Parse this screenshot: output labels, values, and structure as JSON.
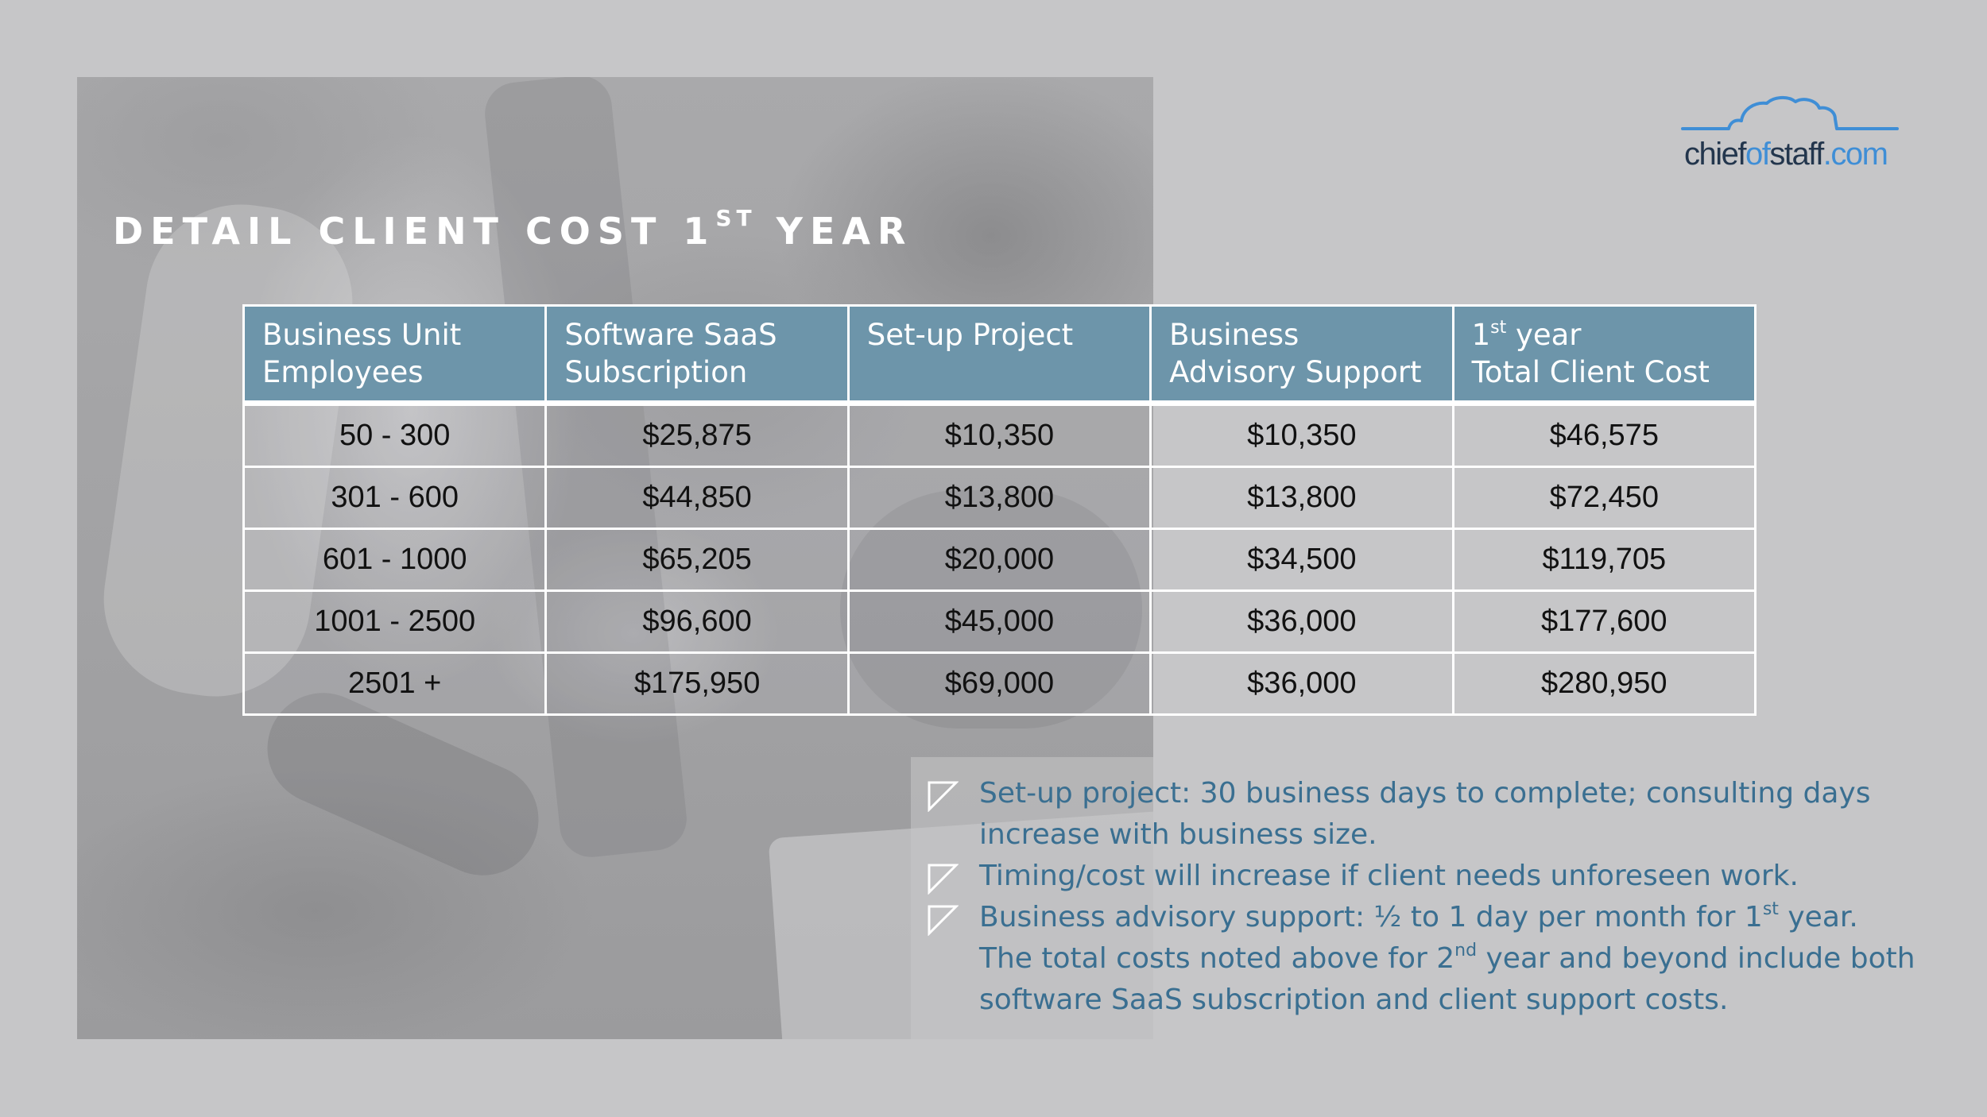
{
  "title": {
    "main": "DETAIL CLIENT COST 1",
    "sup": "ST",
    "tail": " YEAR"
  },
  "logo": {
    "part1": "chief",
    "part2": "of",
    "part3": "staff",
    "part4": ".com",
    "icon": "cloud-icon"
  },
  "table": {
    "headers": [
      {
        "line1": "Business Unit",
        "line2": "Employees"
      },
      {
        "line1": "Software SaaS",
        "line2": "Subscription"
      },
      {
        "line1": "Set-up Project",
        "line2": ""
      },
      {
        "line1": "Business",
        "line2": "Advisory Support"
      },
      {
        "line1_num": "1",
        "line1_sup": "st",
        "line1_rest": " year",
        "line2": "Total Client Cost"
      }
    ],
    "rows": [
      [
        "50 - 300",
        "$25,875",
        "$10,350",
        "$10,350",
        "$46,575"
      ],
      [
        "301 - 600",
        "$44,850",
        "$13,800",
        "$13,800",
        "$72,450"
      ],
      [
        "601 - 1000",
        "$65,205",
        "$20,000",
        "$34,500",
        "$119,705"
      ],
      [
        "1001 - 2500",
        "$96,600",
        "$45,000",
        "$36,000",
        "$177,600"
      ],
      [
        "2501 +",
        "$175,950",
        "$69,000",
        "$36,000",
        "$280,950"
      ]
    ]
  },
  "notes": {
    "item1_line1": "Set-up project: 30 business days to complete; consulting days",
    "item1_line2": "increase with business size.",
    "item2": "Timing/cost will increase if client needs unforeseen work.",
    "item3_pre": "Business advisory support: ½ to 1 day per month for 1",
    "item3_sup": "st",
    "item3_post": " year.",
    "item4_pre": "The total costs noted above for 2",
    "item4_sup": "nd",
    "item4_post": " year and beyond include both",
    "item4_line2": "software SaaS subscription and client support costs.",
    "bullet_icon": "checkbox-outline-icon"
  },
  "colors": {
    "background": "#c6c6c8",
    "header_fill": "#6d95aa",
    "note_text": "#3a6f91",
    "logo_dark": "#23364d",
    "logo_accent": "#3f8ed6"
  }
}
